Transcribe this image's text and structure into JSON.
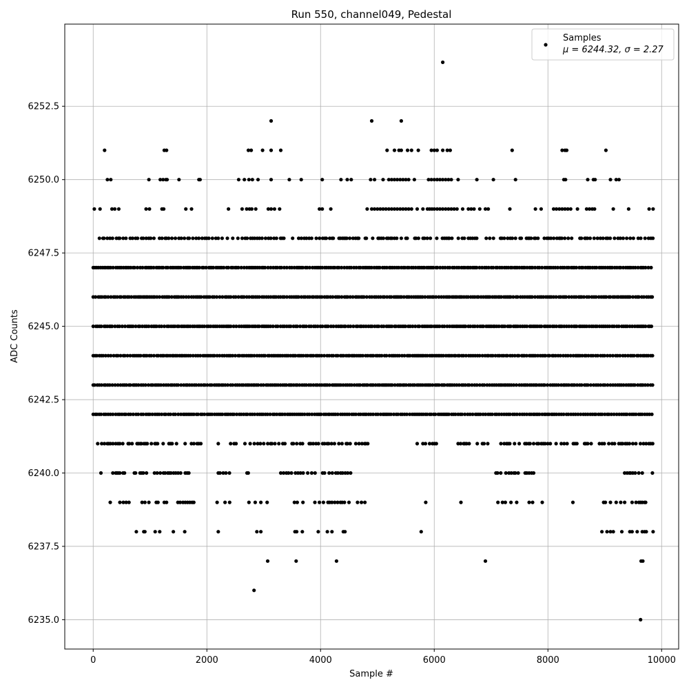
{
  "chart_data": {
    "type": "scatter",
    "title": "Run 550, channel049, Pedestal",
    "xlabel": "Sample #",
    "ylabel": "ADC Counts",
    "xlim": [
      -500,
      10300
    ],
    "ylim": [
      6234,
      6255.3
    ],
    "x_ticks": [
      0,
      2000,
      4000,
      6000,
      8000,
      10000
    ],
    "y_ticks": [
      6235.0,
      6237.5,
      6240.0,
      6242.5,
      6245.0,
      6247.5,
      6250.0,
      6252.5
    ],
    "x_tick_labels": [
      "0",
      "2000",
      "4000",
      "6000",
      "8000",
      "10000"
    ],
    "y_tick_labels": [
      "6235.0",
      "6237.5",
      "6240.0",
      "6242.5",
      "6245.0",
      "6247.5",
      "6250.0",
      "6252.5"
    ],
    "grid": true,
    "legend": {
      "placement": "top-right",
      "label_line1": "Samples",
      "label_line2": "μ = 6244.32, σ = 2.27"
    },
    "colors": {
      "marker": "#000000",
      "grid": "#b0b0b0"
    },
    "series": [
      {
        "name": "Samples",
        "x_range": [
          0,
          9850
        ],
        "dense_levels": [
          6242,
          6243,
          6244,
          6245,
          6246,
          6247
        ],
        "sparse_level_ranges": {
          "6248": [
            [
              80,
              3400
            ],
            [
              3450,
              9850
            ]
          ],
          "6241": [
            [
              80,
              1900
            ],
            [
              2200,
              4850
            ],
            [
              5700,
              6050
            ],
            [
              6420,
              9850
            ]
          ],
          "6240": [
            [
              100,
              1750
            ],
            [
              2200,
              2750
            ],
            [
              3300,
              4600
            ],
            [
              7050,
              7800
            ],
            [
              9350,
              9850
            ]
          ]
        },
        "outliers": [
          [
            2830,
            6236
          ],
          [
            3070,
            6237
          ],
          [
            3570,
            6237
          ],
          [
            4280,
            6237
          ],
          [
            6900,
            6237
          ],
          [
            9640,
            6237
          ],
          [
            9670,
            6237
          ],
          [
            9630,
            6235
          ],
          [
            6150,
            6254
          ],
          [
            3130,
            6252
          ],
          [
            4900,
            6252
          ],
          [
            5420,
            6252
          ],
          [
            200,
            6251
          ],
          [
            1250,
            6251
          ],
          [
            1290,
            6251
          ],
          [
            2730,
            6251
          ],
          [
            2780,
            6251
          ],
          [
            2980,
            6251
          ],
          [
            3130,
            6251
          ],
          [
            3300,
            6251
          ],
          [
            5170,
            6251
          ],
          [
            5300,
            6251
          ],
          [
            5380,
            6251
          ],
          [
            5420,
            6251
          ],
          [
            5530,
            6251
          ],
          [
            5600,
            6251
          ],
          [
            5720,
            6251
          ],
          [
            5950,
            6251
          ],
          [
            6000,
            6251
          ],
          [
            6050,
            6251
          ],
          [
            6150,
            6251
          ],
          [
            6230,
            6251
          ],
          [
            6280,
            6251
          ],
          [
            7370,
            6251
          ],
          [
            8250,
            6251
          ],
          [
            8300,
            6251
          ],
          [
            8330,
            6251
          ],
          [
            9020,
            6251
          ],
          [
            250,
            6250
          ],
          [
            310,
            6250
          ],
          [
            980,
            6250
          ],
          [
            1180,
            6250
          ],
          [
            1230,
            6250
          ],
          [
            1280,
            6250
          ],
          [
            1300,
            6250
          ],
          [
            1510,
            6250
          ],
          [
            1860,
            6250
          ],
          [
            1880,
            6250
          ],
          [
            2560,
            6250
          ],
          [
            2660,
            6250
          ],
          [
            2740,
            6250
          ],
          [
            2800,
            6250
          ],
          [
            2900,
            6250
          ],
          [
            3130,
            6250
          ],
          [
            3450,
            6250
          ],
          [
            3660,
            6250
          ],
          [
            4030,
            6250
          ],
          [
            4360,
            6250
          ],
          [
            4470,
            6250
          ],
          [
            4540,
            6250
          ],
          [
            4880,
            6250
          ],
          [
            4950,
            6250
          ],
          [
            5100,
            6250
          ],
          [
            5200,
            6250
          ],
          [
            5250,
            6250
          ],
          [
            5300,
            6250
          ],
          [
            5350,
            6250
          ],
          [
            5400,
            6250
          ],
          [
            5450,
            6250
          ],
          [
            5500,
            6250
          ],
          [
            5550,
            6250
          ],
          [
            5650,
            6250
          ],
          [
            5900,
            6250
          ],
          [
            5950,
            6250
          ],
          [
            6000,
            6250
          ],
          [
            6050,
            6250
          ],
          [
            6100,
            6250
          ],
          [
            6150,
            6250
          ],
          [
            6200,
            6250
          ],
          [
            6250,
            6250
          ],
          [
            6300,
            6250
          ],
          [
            6420,
            6250
          ],
          [
            6750,
            6250
          ],
          [
            7040,
            6250
          ],
          [
            7430,
            6250
          ],
          [
            8280,
            6250
          ],
          [
            8310,
            6250
          ],
          [
            8700,
            6250
          ],
          [
            8800,
            6250
          ],
          [
            8830,
            6250
          ],
          [
            9100,
            6250
          ],
          [
            9200,
            6250
          ],
          [
            9250,
            6250
          ],
          [
            20,
            6249
          ],
          [
            120,
            6249
          ],
          [
            330,
            6249
          ],
          [
            380,
            6249
          ],
          [
            450,
            6249
          ],
          [
            930,
            6249
          ],
          [
            990,
            6249
          ],
          [
            1210,
            6249
          ],
          [
            1240,
            6249
          ],
          [
            1630,
            6249
          ],
          [
            1730,
            6249
          ],
          [
            2380,
            6249
          ],
          [
            2620,
            6249
          ],
          [
            2700,
            6249
          ],
          [
            2750,
            6249
          ],
          [
            2790,
            6249
          ],
          [
            2860,
            6249
          ],
          [
            3080,
            6249
          ],
          [
            3130,
            6249
          ],
          [
            3190,
            6249
          ],
          [
            3280,
            6249
          ],
          [
            3980,
            6249
          ],
          [
            4030,
            6249
          ],
          [
            4180,
            6249
          ],
          [
            4820,
            6249
          ],
          [
            4900,
            6249
          ],
          [
            4950,
            6249
          ],
          [
            5000,
            6249
          ],
          [
            5050,
            6249
          ],
          [
            5100,
            6249
          ],
          [
            5150,
            6249
          ],
          [
            5200,
            6249
          ],
          [
            5250,
            6249
          ],
          [
            5300,
            6249
          ],
          [
            5350,
            6249
          ],
          [
            5400,
            6249
          ],
          [
            5450,
            6249
          ],
          [
            5500,
            6249
          ],
          [
            5550,
            6249
          ],
          [
            5600,
            6249
          ],
          [
            5700,
            6249
          ],
          [
            5800,
            6249
          ],
          [
            5880,
            6249
          ],
          [
            5920,
            6249
          ],
          [
            5960,
            6249
          ],
          [
            6000,
            6249
          ],
          [
            6050,
            6249
          ],
          [
            6100,
            6249
          ],
          [
            6150,
            6249
          ],
          [
            6200,
            6249
          ],
          [
            6250,
            6249
          ],
          [
            6300,
            6249
          ],
          [
            6350,
            6249
          ],
          [
            6400,
            6249
          ],
          [
            6500,
            6249
          ],
          [
            6600,
            6249
          ],
          [
            6650,
            6249
          ],
          [
            6700,
            6249
          ],
          [
            6800,
            6249
          ],
          [
            6900,
            6249
          ],
          [
            6950,
            6249
          ],
          [
            7330,
            6249
          ],
          [
            7780,
            6249
          ],
          [
            7880,
            6249
          ],
          [
            8100,
            6249
          ],
          [
            8150,
            6249
          ],
          [
            8200,
            6249
          ],
          [
            8250,
            6249
          ],
          [
            8300,
            6249
          ],
          [
            8350,
            6249
          ],
          [
            8400,
            6249
          ],
          [
            8520,
            6249
          ],
          [
            8680,
            6249
          ],
          [
            8730,
            6249
          ],
          [
            8780,
            6249
          ],
          [
            8820,
            6249
          ],
          [
            9150,
            6249
          ],
          [
            9420,
            6249
          ],
          [
            9780,
            6249
          ],
          [
            9850,
            6249
          ],
          [
            300,
            6239
          ],
          [
            470,
            6239
          ],
          [
            530,
            6239
          ],
          [
            580,
            6239
          ],
          [
            630,
            6239
          ],
          [
            860,
            6239
          ],
          [
            910,
            6239
          ],
          [
            980,
            6239
          ],
          [
            1110,
            6239
          ],
          [
            1140,
            6239
          ],
          [
            1250,
            6239
          ],
          [
            1290,
            6239
          ],
          [
            1490,
            6239
          ],
          [
            1530,
            6239
          ],
          [
            1580,
            6239
          ],
          [
            1620,
            6239
          ],
          [
            1660,
            6239
          ],
          [
            1700,
            6239
          ],
          [
            1740,
            6239
          ],
          [
            1770,
            6239
          ],
          [
            2180,
            6239
          ],
          [
            2320,
            6239
          ],
          [
            2400,
            6239
          ],
          [
            2740,
            6239
          ],
          [
            2850,
            6239
          ],
          [
            2950,
            6239
          ],
          [
            3060,
            6239
          ],
          [
            3540,
            6239
          ],
          [
            3590,
            6239
          ],
          [
            3690,
            6239
          ],
          [
            3900,
            6239
          ],
          [
            3980,
            6239
          ],
          [
            4050,
            6239
          ],
          [
            4130,
            6239
          ],
          [
            4160,
            6239
          ],
          [
            4200,
            6239
          ],
          [
            4250,
            6239
          ],
          [
            4300,
            6239
          ],
          [
            4350,
            6239
          ],
          [
            4380,
            6239
          ],
          [
            4420,
            6239
          ],
          [
            4500,
            6239
          ],
          [
            4650,
            6239
          ],
          [
            4720,
            6239
          ],
          [
            4780,
            6239
          ],
          [
            5850,
            6239
          ],
          [
            6470,
            6239
          ],
          [
            7120,
            6239
          ],
          [
            7200,
            6239
          ],
          [
            7250,
            6239
          ],
          [
            7350,
            6239
          ],
          [
            7450,
            6239
          ],
          [
            7670,
            6239
          ],
          [
            7730,
            6239
          ],
          [
            7900,
            6239
          ],
          [
            8440,
            6239
          ],
          [
            8980,
            6239
          ],
          [
            9010,
            6239
          ],
          [
            9100,
            6239
          ],
          [
            9200,
            6239
          ],
          [
            9280,
            6239
          ],
          [
            9350,
            6239
          ],
          [
            9480,
            6239
          ],
          [
            9550,
            6239
          ],
          [
            9600,
            6239
          ],
          [
            9630,
            6239
          ],
          [
            9660,
            6239
          ],
          [
            9700,
            6239
          ],
          [
            9720,
            6239
          ],
          [
            760,
            6238
          ],
          [
            890,
            6238
          ],
          [
            910,
            6238
          ],
          [
            1090,
            6238
          ],
          [
            1170,
            6238
          ],
          [
            1410,
            6238
          ],
          [
            1610,
            6238
          ],
          [
            2200,
            6238
          ],
          [
            2880,
            6238
          ],
          [
            2950,
            6238
          ],
          [
            3550,
            6238
          ],
          [
            3580,
            6238
          ],
          [
            3680,
            6238
          ],
          [
            3960,
            6238
          ],
          [
            4120,
            6238
          ],
          [
            4200,
            6238
          ],
          [
            4400,
            6238
          ],
          [
            4430,
            6238
          ],
          [
            5770,
            6238
          ],
          [
            8950,
            6238
          ],
          [
            9040,
            6238
          ],
          [
            9100,
            6238
          ],
          [
            9150,
            6238
          ],
          [
            9300,
            6238
          ],
          [
            9440,
            6238
          ],
          [
            9480,
            6238
          ],
          [
            9570,
            6238
          ],
          [
            9660,
            6238
          ],
          [
            9700,
            6238
          ],
          [
            9730,
            6238
          ],
          [
            9850,
            6238
          ]
        ]
      }
    ]
  }
}
